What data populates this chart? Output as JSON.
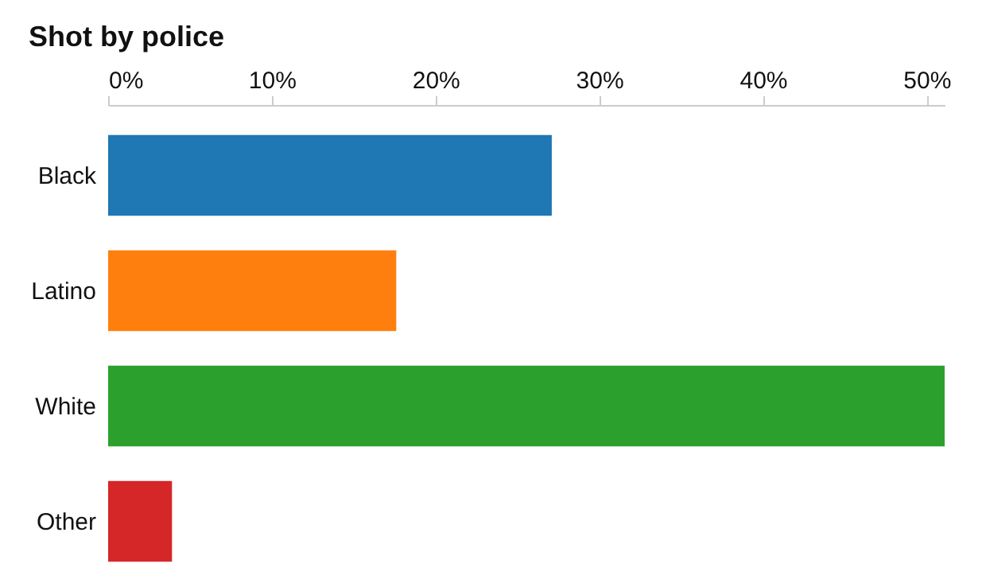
{
  "chart_data": {
    "type": "bar",
    "orientation": "horizontal",
    "title": "Shot by police",
    "categories": [
      "Black",
      "Latino",
      "White",
      "Other"
    ],
    "values": [
      27.1,
      17.6,
      51.1,
      3.9
    ],
    "colors": [
      "#1f77b4",
      "#ff7f0e",
      "#2ca02c",
      "#d62728"
    ],
    "xlim": [
      0,
      51.1
    ],
    "xticks": [
      {
        "value": 0,
        "label": "0%"
      },
      {
        "value": 10,
        "label": "10%"
      },
      {
        "value": 20,
        "label": "20%"
      },
      {
        "value": 30,
        "label": "30%"
      },
      {
        "value": 40,
        "label": "40%"
      },
      {
        "value": 50,
        "label": "50%"
      }
    ],
    "grid": false
  }
}
